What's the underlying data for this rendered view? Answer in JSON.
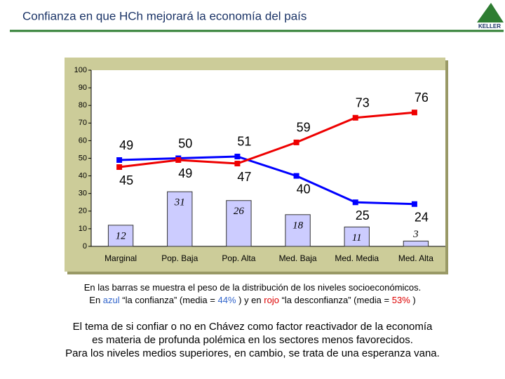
{
  "chart_data": {
    "type": "combo",
    "title": "Confianza en que HCh mejorará la economía del país",
    "categories": [
      "Marginal",
      "Pop. Baja",
      "Pop. Alta",
      "Med. Baja",
      "Med. Media",
      "Med. Alta"
    ],
    "bars": {
      "color": "#ccccff",
      "values": [
        12,
        31,
        26,
        18,
        11,
        3
      ]
    },
    "series": [
      {
        "color": "#0000ff",
        "values": [
          49,
          50,
          51,
          40,
          25,
          24
        ]
      },
      {
        "color": "#ee0000",
        "values": [
          45,
          49,
          47,
          59,
          73,
          76
        ]
      }
    ],
    "ylim": [
      0,
      100
    ],
    "yticks": [
      0,
      10,
      20,
      30,
      40,
      50,
      60,
      70,
      80,
      90,
      100
    ]
  },
  "logo": "KELLER",
  "notes": {
    "line1": "En las barras se muestra el peso de la distribución de los niveles socioeconómicos.",
    "line2": [
      {
        "text": "En "
      },
      {
        "text": "azul",
        "color": "#3366cc"
      },
      {
        "text": " “la confianza” (media = "
      },
      {
        "text": "44%",
        "color": "#3366cc"
      },
      {
        "text": " ) y en "
      },
      {
        "text": "rojo",
        "color": "#dd0000"
      },
      {
        "text": " “la desconfianza” (media = "
      },
      {
        "text": "53%",
        "color": "#dd0000"
      },
      {
        "text": " )"
      }
    ],
    "paragraph": [
      "El tema de si confiar o no en Chávez como factor reactivador de la economía",
      "es materia de profunda polémica en los sectores menos favorecidos.",
      "Para los niveles medios superiores, en cambio, se trata de una esperanza vana."
    ]
  }
}
